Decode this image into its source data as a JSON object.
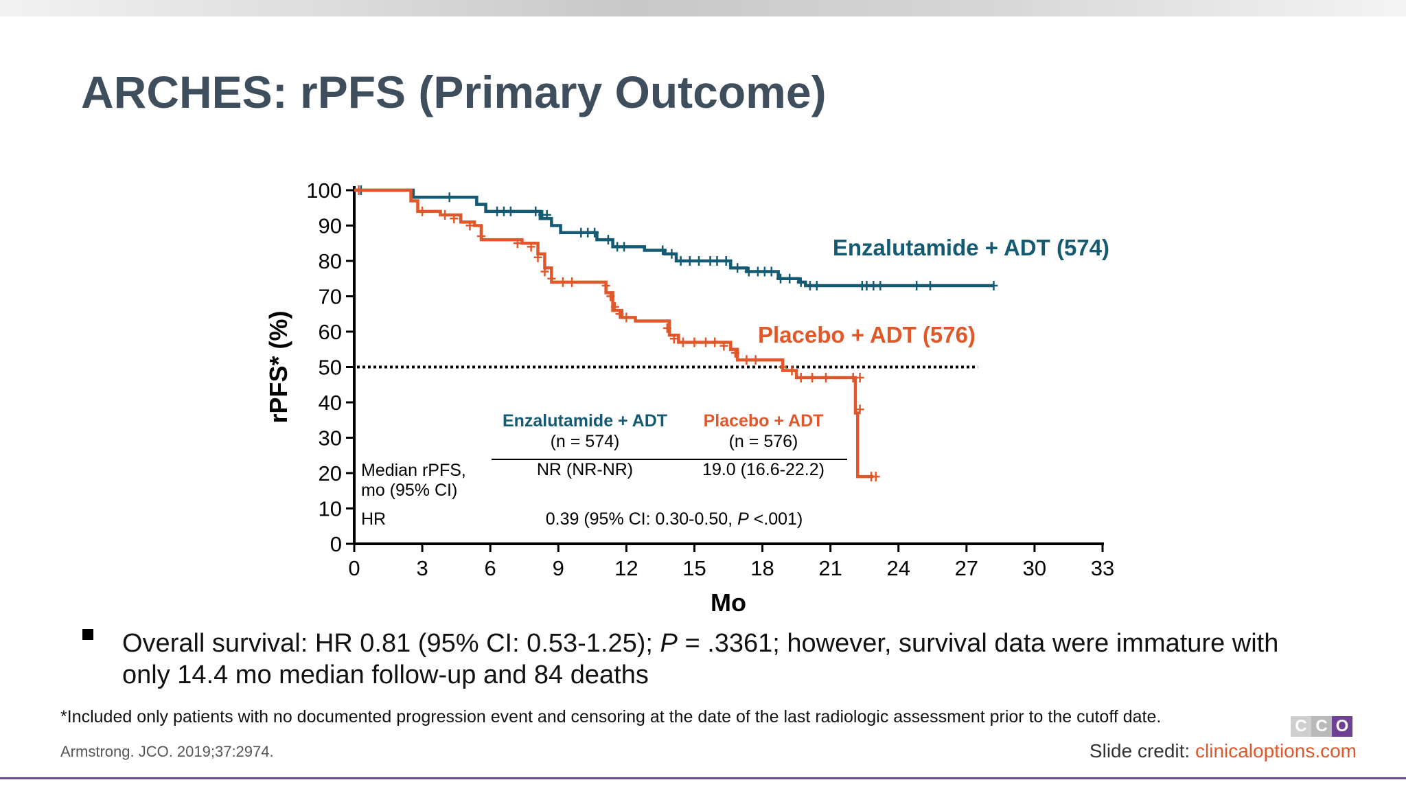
{
  "slide": {
    "title": "ARCHES: rPFS (Primary Outcome)",
    "bullet": "Overall survival: HR 0.81 (95% CI: 0.53-1.25); ",
    "bullet_p": "P",
    "bullet_rest": " = .3361; however, survival data were immature with only 14.4 mo median follow-up and 84 deaths",
    "footnote": "*Included only patients with no documented progression event and censoring at the date of the last radiologic assessment prior to the cutoff date.",
    "reference": "Armstrong. JCO. 2019;37:2974.",
    "credit_label": "Slide credit: ",
    "credit_url": "clinicaloptions.com",
    "logo_letters": [
      "C",
      "C",
      "O"
    ],
    "logo_colors": [
      "#cfcfcf",
      "#b9b9b9",
      "#6f3f93"
    ]
  },
  "chart_data": {
    "type": "line",
    "title": "",
    "xlabel": "Mo",
    "ylabel": "rPFS* (%)",
    "xlim": [
      0,
      33
    ],
    "ylim": [
      0,
      100
    ],
    "xticks": [
      0,
      3,
      6,
      9,
      12,
      15,
      18,
      21,
      24,
      27,
      30,
      33
    ],
    "yticks": [
      0,
      10,
      20,
      30,
      40,
      50,
      60,
      70,
      80,
      90,
      100
    ],
    "reference_line": {
      "y": 50,
      "style": "dotted"
    },
    "series": [
      {
        "name": "Enzalutamide + ADT (574)",
        "color": "#135a72",
        "steps": [
          [
            0,
            100
          ],
          [
            2.6,
            98
          ],
          [
            5.4,
            96
          ],
          [
            5.8,
            94
          ],
          [
            8.2,
            92
          ],
          [
            8.7,
            90
          ],
          [
            9.1,
            88
          ],
          [
            10.7,
            86
          ],
          [
            11.4,
            84
          ],
          [
            12.8,
            83
          ],
          [
            13.7,
            82
          ],
          [
            14.2,
            80
          ],
          [
            16.6,
            78
          ],
          [
            17.3,
            77
          ],
          [
            18.7,
            75
          ],
          [
            19.6,
            74
          ],
          [
            19.9,
            73
          ],
          [
            28.2,
            73
          ]
        ],
        "censors": [
          [
            0.3,
            100
          ],
          [
            4.2,
            98
          ],
          [
            6.3,
            94
          ],
          [
            6.6,
            94
          ],
          [
            6.9,
            94
          ],
          [
            8.0,
            94
          ],
          [
            8.3,
            93
          ],
          [
            8.5,
            93
          ],
          [
            10.0,
            88
          ],
          [
            10.3,
            88
          ],
          [
            10.6,
            88
          ],
          [
            11.2,
            86
          ],
          [
            11.6,
            84
          ],
          [
            11.9,
            84
          ],
          [
            13.6,
            83
          ],
          [
            14.0,
            82
          ],
          [
            14.4,
            80
          ],
          [
            14.8,
            80
          ],
          [
            15.2,
            80
          ],
          [
            15.7,
            80
          ],
          [
            16.0,
            80
          ],
          [
            16.4,
            80
          ],
          [
            16.9,
            78
          ],
          [
            17.4,
            77
          ],
          [
            17.8,
            77
          ],
          [
            18.1,
            77
          ],
          [
            18.4,
            77
          ],
          [
            18.8,
            75
          ],
          [
            19.2,
            75
          ],
          [
            19.7,
            74
          ],
          [
            20.1,
            73
          ],
          [
            20.4,
            73
          ],
          [
            22.4,
            73
          ],
          [
            22.6,
            73
          ],
          [
            22.9,
            73
          ],
          [
            23.2,
            73
          ],
          [
            24.8,
            73
          ],
          [
            25.4,
            73
          ],
          [
            28.2,
            73
          ]
        ]
      },
      {
        "name": "Placebo + ADT (576)",
        "color": "#e0572a",
        "steps": [
          [
            0,
            100
          ],
          [
            2.5,
            97
          ],
          [
            2.8,
            94
          ],
          [
            3.8,
            93
          ],
          [
            4.7,
            91
          ],
          [
            5.3,
            90
          ],
          [
            5.6,
            86
          ],
          [
            7.4,
            85
          ],
          [
            8.1,
            82
          ],
          [
            8.4,
            78
          ],
          [
            8.7,
            74
          ],
          [
            9.2,
            74
          ],
          [
            11.1,
            71
          ],
          [
            11.4,
            66
          ],
          [
            11.8,
            64
          ],
          [
            12.4,
            63
          ],
          [
            13.9,
            59
          ],
          [
            14.3,
            57
          ],
          [
            16.6,
            55
          ],
          [
            16.9,
            52
          ],
          [
            18.3,
            52
          ],
          [
            18.9,
            49
          ],
          [
            19.5,
            47
          ],
          [
            20.3,
            47
          ],
          [
            22.0,
            47
          ],
          [
            22.1,
            37
          ],
          [
            22.2,
            19
          ],
          [
            22.9,
            19
          ]
        ],
        "censors": [
          [
            0.2,
            100
          ],
          [
            3.0,
            94
          ],
          [
            4.0,
            93
          ],
          [
            4.4,
            92
          ],
          [
            5.1,
            90
          ],
          [
            5.6,
            87
          ],
          [
            7.2,
            85
          ],
          [
            7.8,
            84
          ],
          [
            8.1,
            81
          ],
          [
            8.4,
            77
          ],
          [
            8.7,
            75
          ],
          [
            9.2,
            74
          ],
          [
            9.6,
            74
          ],
          [
            11.1,
            73
          ],
          [
            11.3,
            70
          ],
          [
            11.5,
            67
          ],
          [
            11.7,
            65
          ],
          [
            12.0,
            64
          ],
          [
            13.8,
            61
          ],
          [
            14.1,
            58
          ],
          [
            14.5,
            57
          ],
          [
            15.0,
            57
          ],
          [
            15.5,
            57
          ],
          [
            15.9,
            57
          ],
          [
            16.3,
            56
          ],
          [
            16.8,
            54
          ],
          [
            17.3,
            52
          ],
          [
            17.7,
            52
          ],
          [
            18.9,
            50
          ],
          [
            19.3,
            49
          ],
          [
            19.7,
            47
          ],
          [
            20.2,
            47
          ],
          [
            20.8,
            47
          ],
          [
            22.0,
            47
          ],
          [
            22.3,
            47
          ],
          [
            22.3,
            38
          ],
          [
            22.8,
            19
          ],
          [
            23.0,
            19
          ]
        ]
      }
    ],
    "table": {
      "headers": [
        {
          "name": "Enzalutamide + ADT",
          "sub": "(n = 574)",
          "color": "#135a72"
        },
        {
          "name": "Placebo + ADT",
          "sub": "(n = 576)",
          "color": "#e0572a"
        }
      ],
      "rows": [
        {
          "label_1": "Median rPFS,",
          "label_2": "mo (95% CI)",
          "values": [
            "NR (NR-NR)",
            "19.0 (16.6-22.2)"
          ]
        },
        {
          "label_1": "HR",
          "hr_text": "0.39 (95% CI: 0.30-0.50, ",
          "hr_p": "P",
          "hr_rest": " <.001)"
        }
      ]
    }
  }
}
